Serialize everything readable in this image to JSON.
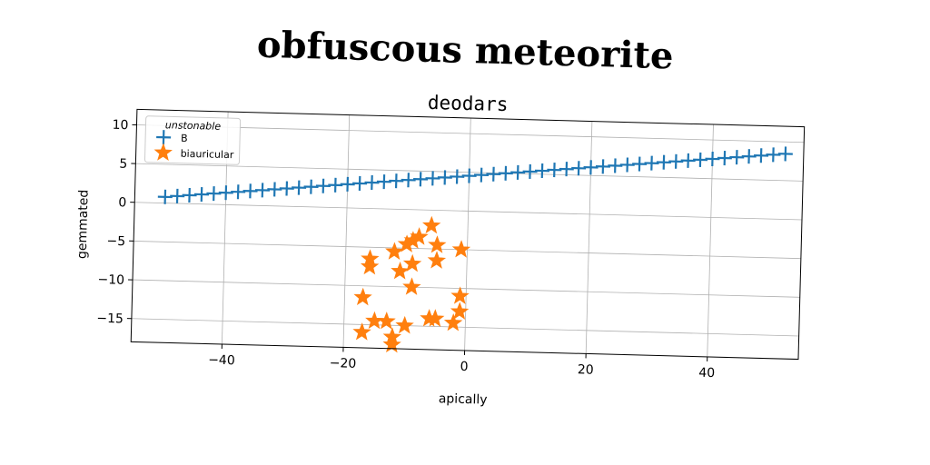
{
  "suptitle": "obfuscous meteorite",
  "chart_data": {
    "type": "scatter",
    "title": "deodars",
    "xlabel": "apically",
    "ylabel": "gemmated",
    "xlim": [
      -55,
      55
    ],
    "ylim": [
      -18,
      12
    ],
    "xticks": [
      -40,
      -20,
      0,
      20,
      40
    ],
    "yticks": [
      10,
      5,
      0,
      -5,
      -10,
      -15
    ],
    "xtick_labels": [
      "−40",
      "−20",
      "0",
      "20",
      "40"
    ],
    "ytick_labels": [
      "10",
      "5",
      "0",
      "−5",
      "−10",
      "−15"
    ],
    "grid": true,
    "legend": {
      "title": "unstonable",
      "location": "upper-left",
      "entries": [
        "B",
        "biauricular"
      ]
    },
    "series": [
      {
        "name": "B",
        "marker": "plus",
        "color": "#1f77b4",
        "x": [
          -50,
          -48,
          -46,
          -44,
          -42,
          -40,
          -38,
          -36,
          -34,
          -32,
          -30,
          -28,
          -26,
          -24,
          -22,
          -20,
          -18,
          -16,
          -14,
          -12,
          -10,
          -8,
          -6,
          -4,
          -2,
          0,
          2,
          4,
          6,
          8,
          10,
          12,
          14,
          16,
          18,
          20,
          22,
          24,
          26,
          28,
          30,
          32,
          34,
          36,
          38,
          40,
          42,
          44,
          46,
          48,
          50,
          52
        ],
        "y": [
          0.8,
          0.95,
          1.1,
          1.25,
          1.4,
          1.55,
          1.7,
          1.85,
          2.0,
          2.15,
          2.3,
          2.45,
          2.6,
          2.75,
          2.9,
          3.05,
          3.2,
          3.35,
          3.5,
          3.65,
          3.8,
          3.95,
          4.1,
          4.25,
          4.4,
          4.55,
          4.7,
          4.85,
          5.0,
          5.15,
          5.3,
          5.45,
          5.6,
          5.75,
          5.9,
          6.05,
          6.2,
          6.35,
          6.5,
          6.65,
          6.8,
          6.95,
          7.1,
          7.25,
          7.4,
          7.55,
          7.7,
          7.85,
          8.0,
          8.15,
          8.3,
          8.45
        ]
      },
      {
        "name": "biauricular",
        "marker": "star",
        "color": "#ff7f0e",
        "x": [
          -6,
          -8,
          -9,
          -10,
          -5,
          -12,
          -16,
          -16,
          -9,
          -11,
          -5,
          -1,
          -9,
          -17,
          -1,
          -1,
          -15,
          -13,
          -10,
          -6,
          -5,
          -2,
          -17,
          -12,
          -12
        ],
        "y": [
          -2,
          -3.5,
          -4,
          -4.5,
          -4.5,
          -5.5,
          -6.5,
          -7.5,
          -7,
          -8,
          -6.5,
          -5,
          -10,
          -11.5,
          -11,
          -13,
          -14.5,
          -14.5,
          -15,
          -14,
          -14,
          -14.5,
          -16,
          -16.5,
          -17.5
        ]
      }
    ]
  }
}
